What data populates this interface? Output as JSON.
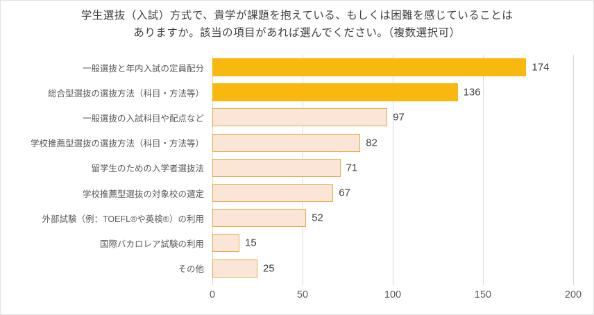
{
  "title_lines": [
    "学生選抜（入試）方式で、貴学が課題を抱えている、もしくは困難を感じていることは",
    "ありますか。該当の項目があれば選んでください。（複数選択可）"
  ],
  "chart_data": {
    "type": "bar",
    "orientation": "horizontal",
    "title": "学生選抜（入試）方式で、貴学が課題を抱えている、もしくは困難を感じていることはありますか。該当の項目があれば選んでください。（複数選択可）",
    "categories": [
      "一般選抜と年内入試の定員配分",
      "総合型選抜の選抜方法（科目・方法等）",
      "一般選抜の入試科目や配点など",
      "学校推薦型選抜の選抜方法（科目・方法等）",
      "留学生のための入学者選抜法",
      "学校推薦型選抜の対象校の選定",
      "外部試験（例：TOEFL®や英検®）の利用",
      "国際バカロレア試験の利用",
      "その他"
    ],
    "values": [
      174,
      136,
      97,
      82,
      71,
      67,
      52,
      15,
      25
    ],
    "highlight_indices": [
      0,
      1
    ],
    "xlim": [
      0,
      200
    ],
    "x_ticks": [
      0,
      50,
      100,
      150,
      200
    ],
    "x_tick_labels": [
      "0",
      "50",
      "100",
      "150",
      "200"
    ],
    "grid": true,
    "legend": "none",
    "data_labels": true,
    "colors": {
      "highlight_fill": "#f9b810",
      "highlight_border": "#f9b810",
      "normal_fill": "#fbe5d6",
      "normal_border": "#e2ac4f",
      "gridline": "#d9d9d9",
      "category_text": "#595959",
      "value_text": "#404040",
      "axis_text": "#595959",
      "title_text": "#404040"
    }
  }
}
